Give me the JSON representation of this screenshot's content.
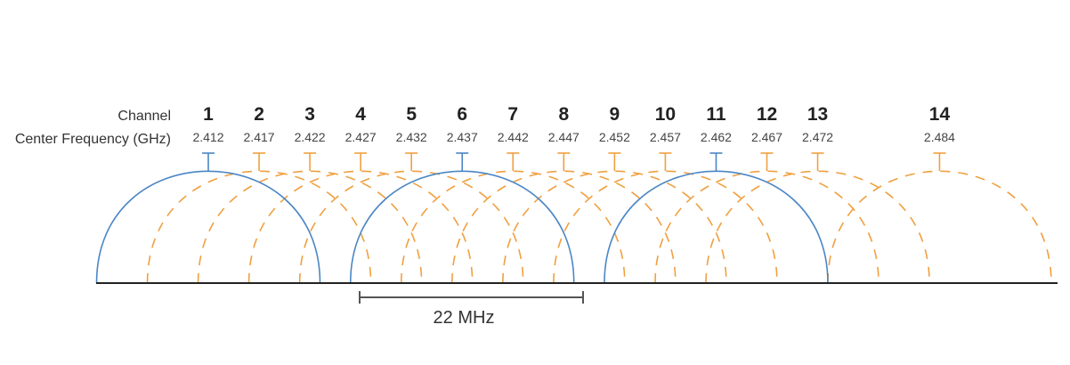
{
  "labels": {
    "channel_row": "Channel",
    "frequency_row": "Center Frequency (GHz)",
    "bandwidth": "22 MHz"
  },
  "colors": {
    "non_overlapping": "#4a86c5",
    "overlapping": "#f0a040",
    "baseline": "#222222"
  },
  "channels": [
    {
      "number": "1",
      "frequency": "2.412",
      "non_overlapping": true
    },
    {
      "number": "2",
      "frequency": "2.417",
      "non_overlapping": false
    },
    {
      "number": "3",
      "frequency": "2.422",
      "non_overlapping": false
    },
    {
      "number": "4",
      "frequency": "2.427",
      "non_overlapping": false
    },
    {
      "number": "5",
      "frequency": "2.432",
      "non_overlapping": false
    },
    {
      "number": "6",
      "frequency": "2.437",
      "non_overlapping": true
    },
    {
      "number": "7",
      "frequency": "2.442",
      "non_overlapping": false
    },
    {
      "number": "8",
      "frequency": "2.447",
      "non_overlapping": false
    },
    {
      "number": "9",
      "frequency": "2.452",
      "non_overlapping": false
    },
    {
      "number": "10",
      "frequency": "2.457",
      "non_overlapping": false
    },
    {
      "number": "11",
      "frequency": "2.462",
      "non_overlapping": true
    },
    {
      "number": "12",
      "frequency": "2.467",
      "non_overlapping": false
    },
    {
      "number": "13",
      "frequency": "2.472",
      "non_overlapping": false
    },
    {
      "number": "14",
      "frequency": "2.484",
      "non_overlapping": false
    }
  ],
  "bandwidth_mhz": 22
}
